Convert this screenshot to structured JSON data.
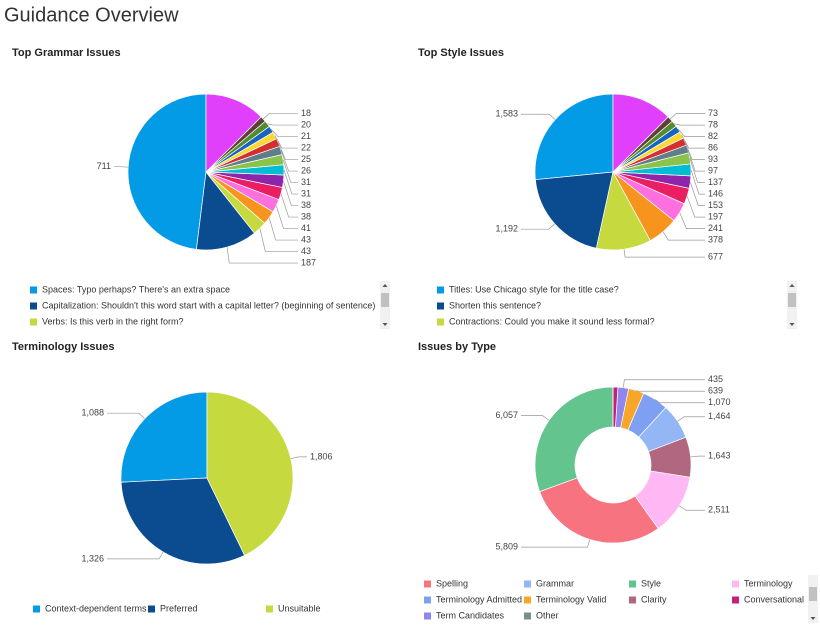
{
  "title": "Guidance Overview",
  "chart_data": [
    {
      "type": "pie",
      "title": "Top Grammar Issues",
      "categories": [
        "Spaces: Typo perhaps? There's an extra space",
        "Capitalization: Shouldn't this word start with a capital letter? (beginning of sentence)",
        "Verbs: Is this verb in the right form?",
        null,
        null,
        null,
        null,
        null,
        null,
        null,
        null,
        null,
        null,
        null,
        null,
        null
      ],
      "values": [
        711,
        187,
        43,
        43,
        41,
        38,
        38,
        31,
        31,
        26,
        25,
        22,
        21,
        20,
        18,
        185
      ],
      "value_labels": [
        "711",
        "187",
        "43",
        "43",
        "41",
        "38",
        "38",
        "31",
        "31",
        "26",
        "25",
        "22",
        "21",
        "20",
        "18",
        null
      ],
      "colors": [
        "#039be5",
        "#0b4b8f",
        "#c6da3f",
        "#f7941d",
        "#ff6fde",
        "#e91e63",
        "#8e24aa",
        "#00bcd4",
        "#8bc34a",
        "#607d8b",
        "#d32f2f",
        "#fdd835",
        "#1565c0",
        "#558b2f",
        "#5d4037",
        "#e040fb"
      ],
      "legend": "bottom"
    },
    {
      "type": "pie",
      "title": "Top Style Issues",
      "categories": [
        "Titles: Use Chicago style for the title case?",
        "Shorten this sentence?",
        "Contractions: Could you make it sound less formal?",
        null,
        null,
        null,
        null,
        null,
        null,
        null,
        null,
        null,
        null,
        null,
        null,
        null
      ],
      "values": [
        1583,
        1192,
        677,
        378,
        241,
        197,
        153,
        146,
        137,
        97,
        93,
        86,
        82,
        78,
        73,
        745
      ],
      "value_labels": [
        "1,583",
        "1,192",
        "677",
        "378",
        "241",
        "197",
        "153",
        "146",
        "137",
        "97",
        "93",
        "86",
        "82",
        "78",
        "73",
        null
      ],
      "colors": [
        "#039be5",
        "#0b4b8f",
        "#c6da3f",
        "#f7941d",
        "#ff6fde",
        "#e91e63",
        "#8e24aa",
        "#00bcd4",
        "#8bc34a",
        "#607d8b",
        "#d32f2f",
        "#fdd835",
        "#1565c0",
        "#558b2f",
        "#5d4037",
        "#e040fb"
      ],
      "legend": "bottom"
    },
    {
      "type": "pie",
      "title": "Terminology Issues",
      "categories": [
        "Context-dependent terms",
        "Preferred",
        "Unsuitable"
      ],
      "values": [
        1088,
        1326,
        1806
      ],
      "value_labels": [
        "1,088",
        "1,326",
        "1,806"
      ],
      "colors": [
        "#039be5",
        "#0b4b8f",
        "#c6da3f"
      ],
      "legend": "bottom"
    },
    {
      "type": "donut",
      "title": "Issues by Type",
      "categories": [
        "Spelling",
        "Grammar",
        "Style",
        "Terminology",
        "Terminology Admitted",
        "Terminology Valid",
        "Clarity",
        "Conversational",
        "Term Candidates",
        "Other"
      ],
      "values": [
        5809,
        1464,
        6057,
        2511,
        1070,
        639,
        1643,
        200,
        435,
        0
      ],
      "value_labels": [
        "5,809",
        "1,464",
        "6,057",
        "2,511",
        "1,070",
        "639",
        "1,643",
        null,
        "435",
        null
      ],
      "colors": [
        "#f7737f",
        "#93b7f5",
        "#64c48e",
        "#ffb8f4",
        "#7fa0f2",
        "#f8a62a",
        "#b0677f",
        "#c2227a",
        "#8f86ee",
        "#7f8c8d"
      ],
      "sort_slices": "descending",
      "legend": "bottom"
    }
  ]
}
